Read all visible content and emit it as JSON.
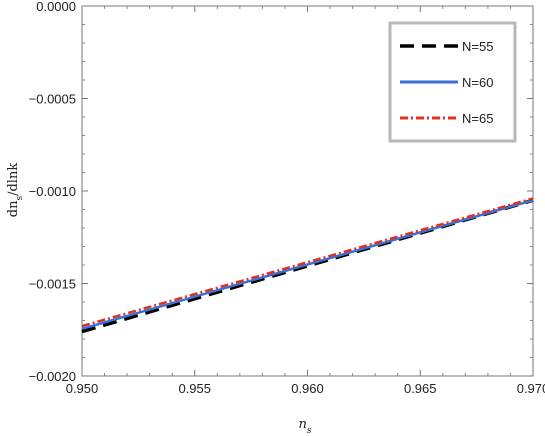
{
  "chart_data": {
    "type": "line",
    "title": "",
    "xlabel": "n",
    "xlabel_sub": "s",
    "ylabel_main": "dn",
    "ylabel_sub": "s",
    "ylabel_tail": "/dlnk",
    "xlim": [
      0.95,
      0.97
    ],
    "ylim": [
      -0.002,
      0.0
    ],
    "xticks": [
      0.95,
      0.955,
      0.96,
      0.965,
      0.97
    ],
    "xtick_labels": [
      "0.950",
      "0.955",
      "0.960",
      "0.965",
      "0.970"
    ],
    "yticks": [
      0.0,
      -0.0005,
      -0.001,
      -0.0015,
      -0.002
    ],
    "ytick_labels": [
      "0.0000",
      "−0.0005",
      "−0.0010",
      "−0.0015",
      "−0.0020"
    ],
    "grid": false,
    "legend_position": "top-right",
    "series": [
      {
        "name": "N=55",
        "x": [
          0.95,
          0.97
        ],
        "values": [
          -0.00176,
          -0.00105
        ],
        "color": "#000000",
        "style": "dashed"
      },
      {
        "name": "N=60",
        "x": [
          0.95,
          0.97
        ],
        "values": [
          -0.001745,
          -0.00105
        ],
        "color": "#3a6fd8",
        "style": "solid"
      },
      {
        "name": "N=65",
        "x": [
          0.95,
          0.97
        ],
        "values": [
          -0.00173,
          -0.00104
        ],
        "color": "#e0301e",
        "style": "dashdot"
      }
    ]
  }
}
